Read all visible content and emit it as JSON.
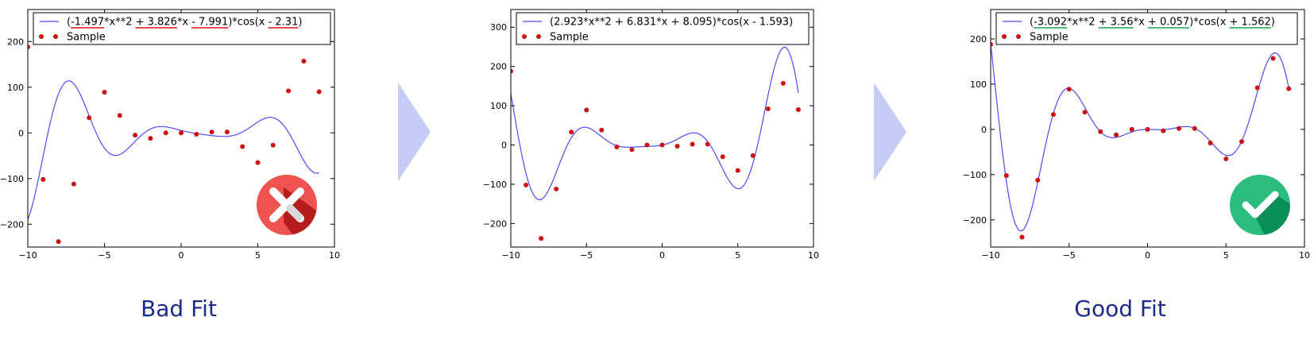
{
  "labels": {
    "bad": "Bad Fit",
    "good": "Good Fit"
  },
  "colors": {
    "curve": "#4b4bff",
    "sample": "#cc1111",
    "bad_underline": "#dd1111",
    "good_underline": "#16a34a",
    "arrow": "#c5cbf5",
    "bad_badge": "#ef5350",
    "bad_badge_shadow": "#b71c1c",
    "good_badge": "#2bbd7e",
    "good_badge_shadow": "#0b8f5a",
    "label": "#1c2a8c"
  },
  "icons": {
    "bad": "x-icon",
    "good": "check-icon",
    "arrow": "arrow-right-icon"
  },
  "chart_data": [
    {
      "type": "line",
      "status": "bad",
      "xlim": [
        -10,
        10
      ],
      "ylim": [
        -250,
        270
      ],
      "xticks": [
        -10,
        -5,
        0,
        5,
        10
      ],
      "yticks": [
        -200,
        -100,
        0,
        100,
        200
      ],
      "coeffs": {
        "a": -1.497,
        "b": 3.826,
        "c": -7.991,
        "d": -2.31
      },
      "legend_curve": "(-1.497*x**2 + 3.826*x - 7.991)*cos(x - 2.31)",
      "legend_curve_parts": [
        "(",
        "-1.497",
        "*x**2 ",
        "+ 3.826",
        "*x ",
        "- 7.991",
        ")*cos(x ",
        "- 2.31",
        ")"
      ],
      "underlined_parts": [
        1,
        3,
        5,
        7
      ],
      "legend_sample": "Sample",
      "curve_xrange": [
        -10,
        9
      ],
      "samples_x": [
        -10,
        -9,
        -8,
        -7,
        -6,
        -5,
        -4,
        -3,
        -2,
        -1,
        0,
        1,
        2,
        3,
        4,
        5,
        6,
        7,
        8,
        9
      ],
      "samples_y": [
        188,
        -102,
        -238,
        -112,
        33,
        89,
        38,
        -5,
        -12,
        0,
        0,
        -3,
        2,
        2,
        -30,
        -65,
        -27,
        92,
        157,
        90
      ]
    },
    {
      "type": "line",
      "status": "middle",
      "xlim": [
        -10,
        10
      ],
      "ylim": [
        -260,
        345
      ],
      "xticks": [
        -10,
        -5,
        0,
        5,
        10
      ],
      "yticks": [
        -200,
        -100,
        0,
        100,
        200,
        300
      ],
      "coeffs": {
        "a": 2.923,
        "b": 6.831,
        "c": 8.095,
        "d": -1.593
      },
      "legend_curve": "(2.923*x**2 + 6.831*x + 8.095)*cos(x - 1.593)",
      "legend_curve_parts": [
        "(2.923*x**2 + 6.831*x + 8.095)*cos(x - 1.593)"
      ],
      "underlined_parts": [],
      "legend_sample": "Sample",
      "curve_xrange": [
        -10,
        9
      ],
      "samples_x": [
        -10,
        -9,
        -8,
        -7,
        -6,
        -5,
        -4,
        -3,
        -2,
        -1,
        0,
        1,
        2,
        3,
        4,
        5,
        6,
        7,
        8,
        9
      ],
      "samples_y": [
        188,
        -102,
        -238,
        -112,
        33,
        89,
        38,
        -5,
        -12,
        0,
        0,
        -3,
        2,
        2,
        -30,
        -65,
        -27,
        92,
        157,
        90
      ]
    },
    {
      "type": "line",
      "status": "good",
      "xlim": [
        -10,
        10
      ],
      "ylim": [
        -260,
        265
      ],
      "xticks": [
        -10,
        -5,
        0,
        5,
        10
      ],
      "yticks": [
        -200,
        -100,
        0,
        100,
        200
      ],
      "coeffs": {
        "a": -3.092,
        "b": 3.56,
        "c": 0.057,
        "d": 1.562
      },
      "legend_curve": "(-3.092*x**2 + 3.56*x + 0.057)*cos(x + 1.562)",
      "legend_curve_parts": [
        "(",
        "-3.092",
        "*x**2 ",
        "+ 3.56",
        "*x ",
        "+ 0.057",
        ")*cos(x ",
        "+ 1.562",
        ")"
      ],
      "underlined_parts": [
        1,
        3,
        5,
        7
      ],
      "legend_sample": "Sample",
      "curve_xrange": [
        -10,
        9
      ],
      "samples_x": [
        -10,
        -9,
        -8,
        -7,
        -6,
        -5,
        -4,
        -3,
        -2,
        -1,
        0,
        1,
        2,
        3,
        4,
        5,
        6,
        7,
        8,
        9
      ],
      "samples_y": [
        188,
        -102,
        -238,
        -112,
        33,
        89,
        38,
        -5,
        -12,
        0,
        0,
        -3,
        2,
        2,
        -30,
        -65,
        -27,
        92,
        157,
        90
      ]
    }
  ]
}
